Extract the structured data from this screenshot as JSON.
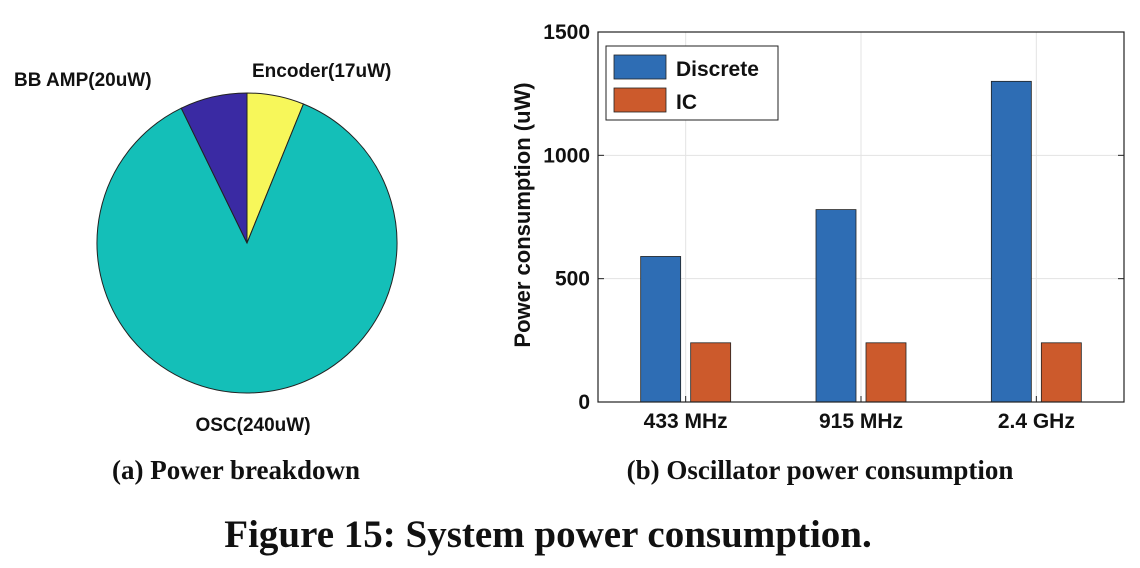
{
  "figure_caption": "Figure 15: System power consumption.",
  "colors": {
    "osc": "#14BFB8",
    "encoder": "#F7F75A",
    "bb_amp": "#3A2AA3",
    "discrete": "#2E6DB4",
    "ic": "#CC5A2C",
    "grid": "#E3E3E3"
  },
  "chart_data": [
    {
      "type": "pie",
      "caption": "(a) Power breakdown",
      "slices": [
        {
          "label": "Encoder(17uW)",
          "value": 17,
          "color": "#F7F75A"
        },
        {
          "label": "OSC(240uW)",
          "value": 240,
          "color": "#14BFB8"
        },
        {
          "label": "BB AMP(20uW)",
          "value": 20,
          "color": "#3A2AA3"
        }
      ]
    },
    {
      "type": "bar",
      "caption": "(b) Oscillator power consumption",
      "categories": [
        "433 MHz",
        "915 MHz",
        "2.4 GHz"
      ],
      "series": [
        {
          "name": "Discrete",
          "values": [
            590,
            780,
            1300
          ],
          "color": "#2E6DB4"
        },
        {
          "name": "IC",
          "values": [
            240,
            240,
            240
          ],
          "color": "#CC5A2C"
        }
      ],
      "ylabel": "Power consumption (uW)",
      "xlabel": "",
      "ylim": [
        0,
        1500
      ],
      "yticks": [
        0,
        500,
        1000,
        1500
      ],
      "grid": true,
      "legend": "top-left"
    }
  ]
}
